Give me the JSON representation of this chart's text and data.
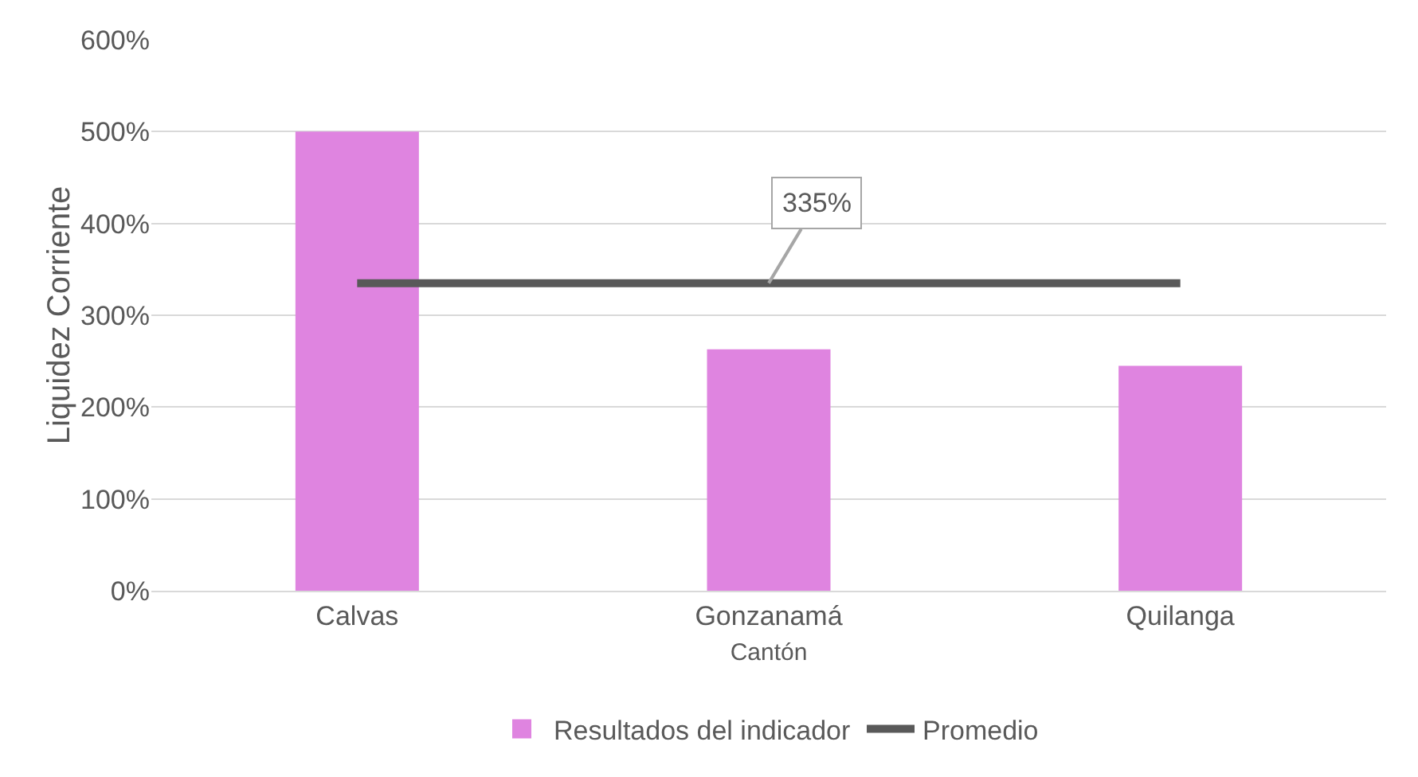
{
  "chart_data": {
    "type": "bar",
    "xlabel": "Cantón",
    "ylabel": "Liquidez Corriente",
    "categories": [
      "Calvas",
      "Gonzanamá",
      "Quilanga"
    ],
    "series": [
      {
        "name": "Resultados del indicador",
        "color": "#df84e0",
        "values": [
          500,
          263,
          245
        ]
      },
      {
        "name": "Promedio",
        "type": "line",
        "color": "#595959",
        "values": [
          335,
          335,
          335
        ]
      }
    ],
    "annotations": [
      {
        "text": "335%",
        "x": "Gonzanamá",
        "y": 335
      }
    ],
    "ylim": [
      0,
      600
    ],
    "yticks": [
      {
        "value": 0,
        "label": "0%"
      },
      {
        "value": 100,
        "label": "100%"
      },
      {
        "value": 200,
        "label": "200%"
      },
      {
        "value": 300,
        "label": "300%"
      },
      {
        "value": 400,
        "label": "400%"
      },
      {
        "value": 500,
        "label": "500%"
      },
      {
        "value": 600,
        "label": "600%"
      }
    ],
    "grid": "y",
    "legend": "bottom"
  }
}
